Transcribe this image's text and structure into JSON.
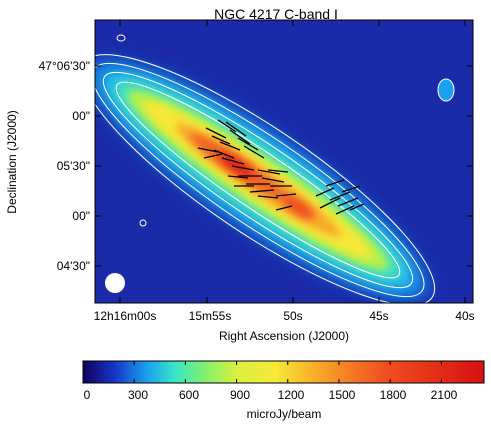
{
  "figure": {
    "title": "NGC 4217   C-band   I",
    "xlabel": "Right Ascension (J2000)",
    "ylabel": "Declination (J2000)",
    "xticks": [
      "12h16m00s",
      "15m55s",
      "50s",
      "45s",
      "40s"
    ],
    "yticks": [
      "47°06'30\"",
      "00\"",
      "05'30\"",
      "00\"",
      "04'30\""
    ],
    "colorbar": {
      "ticks": [
        "0",
        "300",
        "600",
        "900",
        "1200",
        "1500",
        "1800",
        "2100"
      ],
      "label": "microJy/beam",
      "min": 0,
      "max": 2350
    },
    "colors": {
      "background": "#1a2aa8",
      "contour": "#ffffff",
      "vectors": "#000000"
    }
  }
}
